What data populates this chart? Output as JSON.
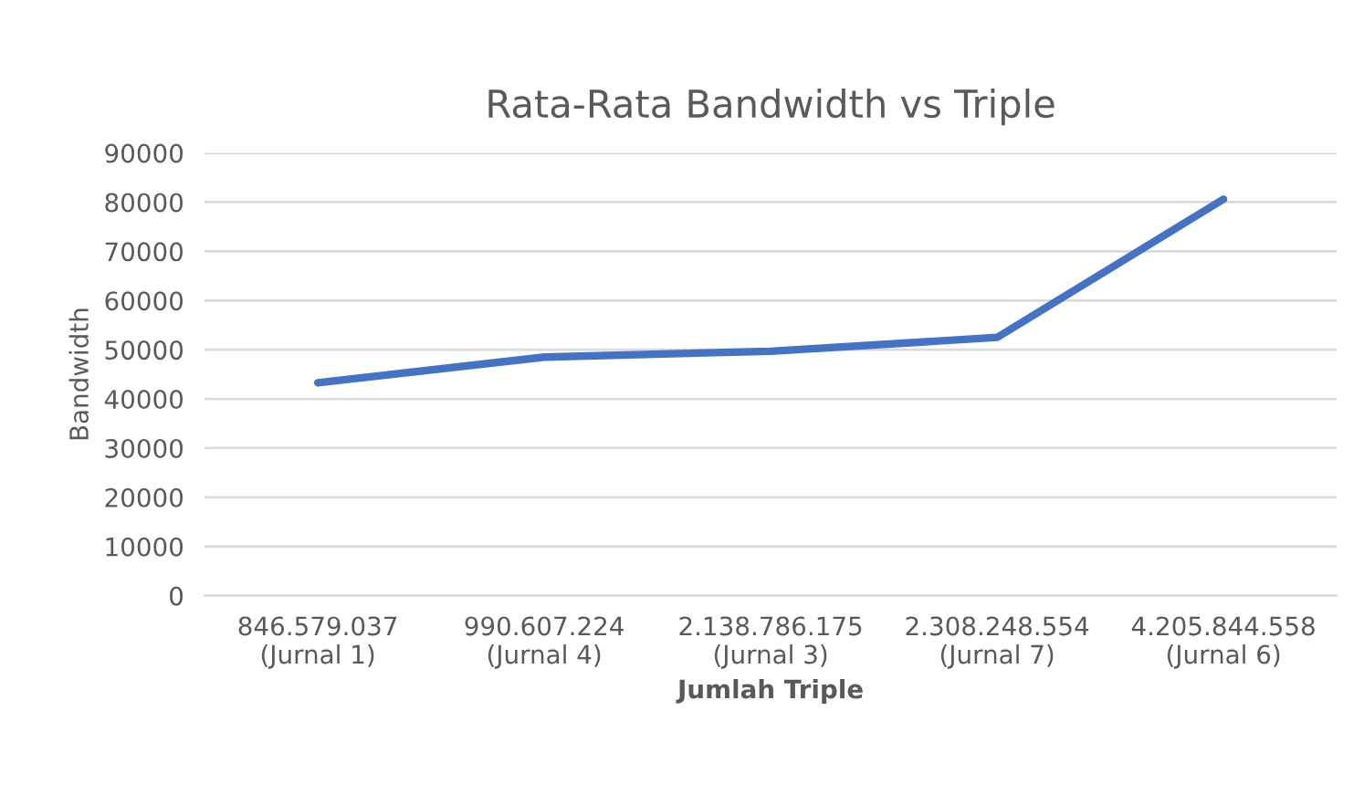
{
  "chart_data": {
    "type": "line",
    "title": "Rata-Rata Bandwidth vs Triple",
    "xlabel": "Jumlah Triple",
    "ylabel": "Bandwidth",
    "categories": [
      "846.579.037\n(Jurnal 1)",
      "990.607.224\n(Jurnal 4)",
      "2.138.786.175\n(Jurnal 3)",
      "2.308.248.554\n(Jurnal 7)",
      "4.205.844.558\n(Jurnal 6)"
    ],
    "series": [
      {
        "color": "#4472c4",
        "values": [
          43300,
          48500,
          49700,
          52500,
          80600
        ]
      }
    ],
    "ylim": [
      0,
      90000
    ],
    "yticks": [
      0,
      10000,
      20000,
      30000,
      40000,
      50000,
      60000,
      70000,
      80000,
      90000
    ],
    "grid": "y",
    "marker": "none",
    "line_style": "solid"
  }
}
